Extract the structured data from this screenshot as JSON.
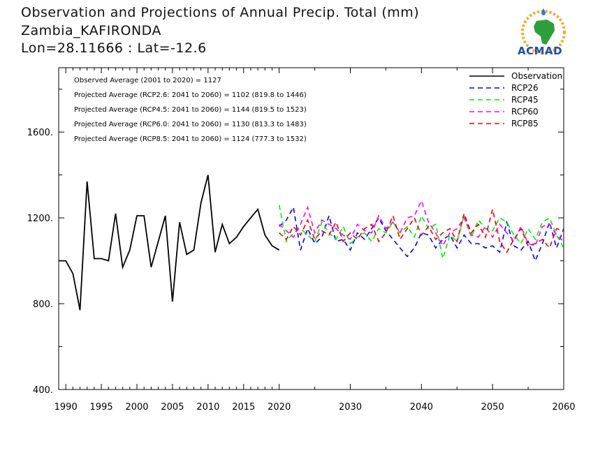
{
  "title": {
    "line1": "Observation and Projections of Annual Precip. Total (mm)",
    "line2": "Zambia_KAFIRONDA",
    "line3": "Lon=28.11666 : Lat=-12.6"
  },
  "logo": {
    "text": "ACMAD"
  },
  "annotations": [
    "Observed Average (2001 to 2020) = 1127",
    "Projected Average (RCP2.6: 2041 to 2060) = 1102 (819.8 to 1446)",
    "Projected Average (RCP4.5: 2041 to 2060) = 1144 (819.5 to 1523)",
    "Projected Average (RCP6.0: 2041 to 2060) = 1130 (813.3 to 1483)",
    "Projected Average (RCP8.5: 2041 to 2060) = 1124 (777.3 to 1532)"
  ],
  "colors": {
    "observation": "#000000",
    "rcp26": "#0000ff",
    "rcp45": "#00ee00",
    "rcp60": "#ff00ff",
    "rcp85": "#ee0000"
  },
  "chart_data": {
    "type": "line",
    "x_ticks": [
      1990,
      1995,
      2000,
      2005,
      2010,
      2015,
      2020,
      2030,
      2040,
      2050,
      2060
    ],
    "y_ticks": [
      400,
      800,
      1200,
      1600
    ],
    "y_tick_labels": [
      "400.",
      "800.",
      "1200.",
      "1600."
    ],
    "ylim": [
      400,
      1900
    ],
    "legend_position": "top-right",
    "series": [
      {
        "name": "Observation",
        "style": "solid",
        "color": "#000000",
        "x": [
          1989,
          1990,
          1991,
          1992,
          1993,
          1994,
          1995,
          1996,
          1997,
          1998,
          1999,
          2000,
          2001,
          2002,
          2003,
          2004,
          2005,
          2006,
          2007,
          2008,
          2009,
          2010,
          2011,
          2012,
          2013,
          2014,
          2015,
          2016,
          2017,
          2018,
          2019,
          2020
        ],
        "values": [
          1000,
          1000,
          940,
          770,
          1370,
          1010,
          1010,
          1000,
          1220,
          970,
          1050,
          1210,
          1210,
          970,
          1090,
          1210,
          810,
          1180,
          1030,
          1050,
          1270,
          1400,
          1040,
          1170,
          1080,
          1110,
          1160,
          1200,
          1240,
          1120,
          1070,
          1050
        ]
      },
      {
        "name": "RCP26",
        "style": "dashed",
        "color": "#0000ff",
        "x": [
          2020,
          2021,
          2022,
          2023,
          2024,
          2025,
          2026,
          2027,
          2028,
          2029,
          2030,
          2031,
          2032,
          2033,
          2034,
          2035,
          2036,
          2037,
          2038,
          2039,
          2040,
          2041,
          2042,
          2043,
          2044,
          2045,
          2046,
          2047,
          2048,
          2049,
          2050,
          2051,
          2052,
          2053,
          2054,
          2055,
          2056,
          2057,
          2058,
          2059,
          2060
        ],
        "values": [
          1160,
          1190,
          1250,
          1050,
          1150,
          1080,
          1110,
          1210,
          1090,
          1100,
          1050,
          1130,
          1100,
          1150,
          1200,
          1140,
          1100,
          1060,
          1020,
          1060,
          1130,
          1120,
          1060,
          1100,
          1120,
          1060,
          1120,
          1080,
          1080,
          1060,
          1070,
          1040,
          1180,
          1070,
          1050,
          1090,
          1000,
          1080,
          1180,
          1060,
          1150
        ]
      },
      {
        "name": "RCP45",
        "style": "dashed",
        "color": "#00ee00",
        "x": [
          2020,
          2021,
          2022,
          2023,
          2024,
          2025,
          2026,
          2027,
          2028,
          2029,
          2030,
          2031,
          2032,
          2033,
          2034,
          2035,
          2036,
          2037,
          2038,
          2039,
          2040,
          2041,
          2042,
          2043,
          2044,
          2045,
          2046,
          2047,
          2048,
          2049,
          2050,
          2051,
          2052,
          2053,
          2054,
          2055,
          2056,
          2057,
          2058,
          2059,
          2060
        ],
        "values": [
          1260,
          1090,
          1130,
          1150,
          1120,
          1090,
          1180,
          1130,
          1100,
          1160,
          1080,
          1110,
          1130,
          1090,
          1150,
          1130,
          1180,
          1130,
          1160,
          1110,
          1210,
          1150,
          1170,
          1010,
          1120,
          1090,
          1210,
          1110,
          1190,
          1150,
          1140,
          1200,
          1180,
          1120,
          1080,
          1150,
          1100,
          1180,
          1200,
          1120,
          1060
        ]
      },
      {
        "name": "RCP60",
        "style": "dashed",
        "color": "#ff00ff",
        "x": [
          2020,
          2021,
          2022,
          2023,
          2024,
          2025,
          2026,
          2027,
          2028,
          2029,
          2030,
          2031,
          2032,
          2033,
          2034,
          2035,
          2036,
          2037,
          2038,
          2039,
          2040,
          2041,
          2042,
          2043,
          2044,
          2045,
          2046,
          2047,
          2048,
          2049,
          2050,
          2051,
          2052,
          2053,
          2054,
          2055,
          2056,
          2057,
          2058,
          2059,
          2060
        ],
        "values": [
          1170,
          1140,
          1110,
          1170,
          1250,
          1130,
          1190,
          1170,
          1150,
          1120,
          1100,
          1170,
          1140,
          1130,
          1210,
          1150,
          1180,
          1130,
          1200,
          1210,
          1280,
          1180,
          1130,
          1070,
          1130,
          1150,
          1200,
          1120,
          1110,
          1160,
          1110,
          1170,
          1130,
          1090,
          1160,
          1080,
          1070,
          1160,
          1170,
          1120,
          1090
        ]
      },
      {
        "name": "RCP85",
        "style": "dashed",
        "color": "#ee0000",
        "x": [
          2020,
          2021,
          2022,
          2023,
          2024,
          2025,
          2026,
          2027,
          2028,
          2029,
          2030,
          2031,
          2032,
          2033,
          2034,
          2035,
          2036,
          2037,
          2038,
          2039,
          2040,
          2041,
          2042,
          2043,
          2044,
          2045,
          2046,
          2047,
          2048,
          2049,
          2050,
          2051,
          2052,
          2053,
          2054,
          2055,
          2056,
          2057,
          2058,
          2059,
          2060
        ],
        "values": [
          1130,
          1100,
          1160,
          1120,
          1190,
          1100,
          1140,
          1120,
          1180,
          1090,
          1130,
          1100,
          1150,
          1170,
          1090,
          1130,
          1210,
          1100,
          1150,
          1200,
          1120,
          1160,
          1100,
          1130,
          1150,
          1090,
          1220,
          1130,
          1170,
          1110,
          1240,
          1090,
          1040,
          1100,
          1150,
          1070,
          1080,
          1100,
          1060,
          1150,
          1140
        ]
      }
    ]
  }
}
